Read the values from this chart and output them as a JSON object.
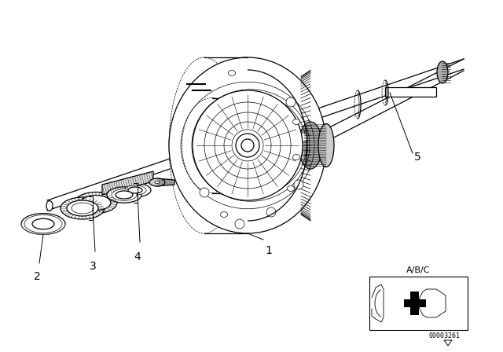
{
  "background_color": "#ffffff",
  "line_color": "#000000",
  "diagram_number": "00003261",
  "inset_label": "A/B/C",
  "label_fontsize": 10,
  "small_fontsize": 7
}
